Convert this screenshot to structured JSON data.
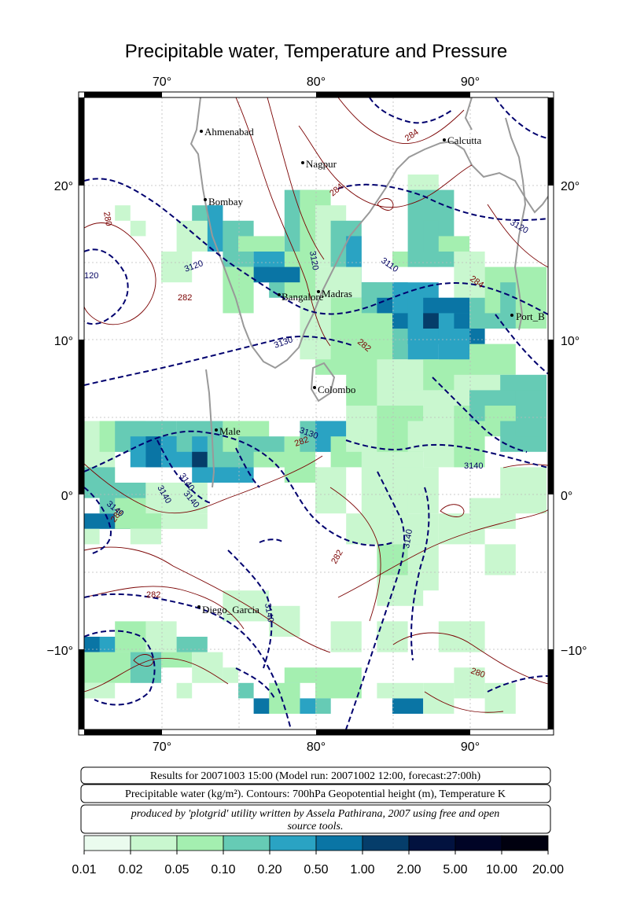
{
  "title": "Precipitable water, Temperature and Pressure",
  "axes": {
    "lon_ticks": [
      "70°",
      "80°",
      "90°"
    ],
    "lat_ticks": [
      "20°",
      "10°",
      "0°",
      "−10°"
    ]
  },
  "cities": [
    {
      "name": "Ahmenabad"
    },
    {
      "name": "Calcutta"
    },
    {
      "name": "Nagpur"
    },
    {
      "name": "Bombay"
    },
    {
      "name": "Bangalore"
    },
    {
      "name": "Madras"
    },
    {
      "name": "Port_B"
    },
    {
      "name": "Colombo"
    },
    {
      "name": "Male"
    },
    {
      "name": "Diego_Garcia"
    }
  ],
  "contour_labels": {
    "temperature": [
      "284",
      "284",
      "280",
      "282",
      "282",
      "284",
      "282",
      "282",
      "282",
      "282",
      "280"
    ],
    "pressure": [
      "3120",
      "3120",
      "3120",
      "3110",
      "3130",
      "3130",
      "3140",
      "3140",
      "3140",
      "3140",
      "3140",
      "3140",
      "3140",
      "120"
    ]
  },
  "info": {
    "line1": "Results for 20071003 15:00 (Model run: 20071002 12:00, forecast:27:00h)",
    "line2": "Precipitable water (kg/m²).  Contours: 700hPa Geopotential height (m), Temperature K",
    "line3a": "produced by 'plotgrid' utility written by Assela Pathirana, 2007 using free and open",
    "line3b": "source tools."
  },
  "colorbar": {
    "labels": [
      "0.01",
      "0.02",
      "0.05",
      "0.10",
      "0.20",
      "0.50",
      "1.00",
      "2.00",
      "5.00",
      "10.00",
      "20.00"
    ],
    "colors": [
      "#eafbee",
      "#c9f7cf",
      "#a4efb0",
      "#66cbb5",
      "#2aa3c3",
      "#0a75a5",
      "#053d6a",
      "#02123f",
      "#000426",
      "#00000f"
    ]
  },
  "map_colors": {
    "temperature_contour": "#7a0000",
    "pressure_contour": "#00006e",
    "coastline": "#999999"
  }
}
